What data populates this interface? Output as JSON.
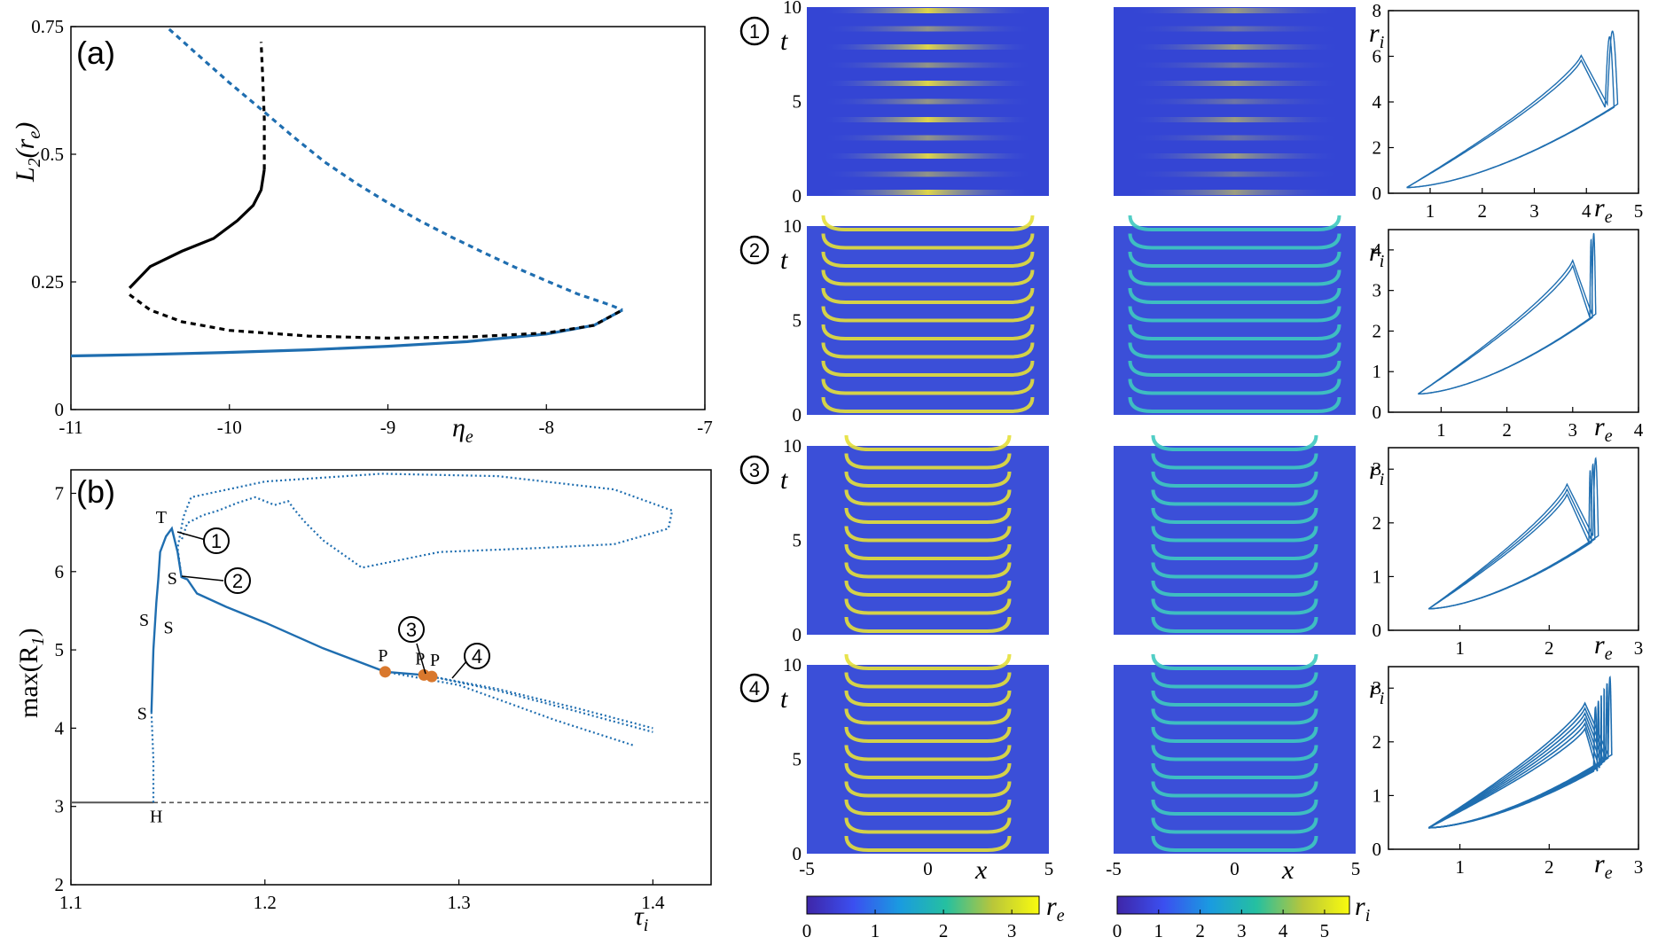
{
  "colors": {
    "blue": "#1f6eb0",
    "black": "#000000",
    "orange": "#d9782d",
    "gray": "#555555"
  },
  "labels": {
    "panel_a": "(a)",
    "panel_b": "(b)",
    "eta_e": "η",
    "eta_sub": "e",
    "tau_i": "τ",
    "tau_sub": "i",
    "L2": "L",
    "L2_sub": "2",
    "L2_arg": "(r",
    "L2_arg_sub": "e",
    "L2_close": ")",
    "maxR": "max(R",
    "maxR_sub": "1",
    "maxR_close": ")",
    "t": "t",
    "x": "x",
    "re": "r",
    "re_sub": "e",
    "ri": "r",
    "ri_sub": "i",
    "circle_nums": [
      "1",
      "2",
      "3",
      "4"
    ]
  },
  "point_labels": {
    "T": "T",
    "S": "S",
    "H": "H",
    "P": "P"
  },
  "chart_data": [
    {
      "id": "panel-a",
      "type": "line",
      "title": "(a)",
      "xlabel": "η_e",
      "ylabel": "L_2(r_e)",
      "xlim": [
        -11,
        -7
      ],
      "ylim": [
        0,
        0.75
      ],
      "xticks": [
        "-11",
        "-10",
        "-9",
        "-8",
        "-7"
      ],
      "yticks": [
        "0",
        "0.25",
        "0.5",
        "0.75"
      ],
      "series": [
        {
          "style": "blue-solid",
          "x": [
            -11.0,
            -10.5,
            -10.0,
            -9.5,
            -9.0,
            -8.5,
            -8.0,
            -7.7,
            -7.52
          ],
          "y": [
            0.105,
            0.108,
            0.112,
            0.117,
            0.124,
            0.133,
            0.148,
            0.165,
            0.195
          ]
        },
        {
          "style": "blue-dashed",
          "x": [
            -10.38,
            -10.2,
            -10.0,
            -9.8,
            -9.6,
            -9.4,
            -9.2,
            -9.0,
            -8.8,
            -8.6,
            -8.4,
            -8.2,
            -8.0,
            -7.8,
            -7.6,
            -7.52
          ],
          "y": [
            0.745,
            0.695,
            0.64,
            0.588,
            0.535,
            0.485,
            0.443,
            0.405,
            0.37,
            0.338,
            0.308,
            0.279,
            0.252,
            0.226,
            0.205,
            0.195
          ]
        },
        {
          "style": "black-dashed-lower",
          "x": [
            -10.63,
            -10.5,
            -10.3,
            -10.0,
            -9.5,
            -9.0,
            -8.5,
            -8.0,
            -7.7,
            -7.52
          ],
          "y": [
            0.225,
            0.195,
            0.172,
            0.155,
            0.144,
            0.14,
            0.142,
            0.15,
            0.165,
            0.195
          ]
        },
        {
          "style": "black-solid",
          "x": [
            -10.63,
            -10.5,
            -10.3,
            -10.1,
            -9.95,
            -9.85,
            -9.8,
            -9.78
          ],
          "y": [
            0.238,
            0.28,
            0.31,
            0.335,
            0.37,
            0.4,
            0.43,
            0.47
          ]
        },
        {
          "style": "black-dashed-upper",
          "x": [
            -9.78,
            -9.78,
            -9.79,
            -9.8
          ],
          "y": [
            0.47,
            0.57,
            0.65,
            0.72
          ]
        }
      ]
    },
    {
      "id": "panel-b",
      "type": "line",
      "title": "(b)",
      "xlabel": "τ_i",
      "ylabel": "max(R_1)",
      "xlim": [
        1.1,
        1.43
      ],
      "ylim": [
        2,
        7.3
      ],
      "xticks": [
        "1.1",
        "1.2",
        "1.3",
        "1.4"
      ],
      "yticks": [
        "2",
        "3",
        "4",
        "5",
        "6",
        "7"
      ],
      "series": [
        {
          "style": "gray-solid",
          "x": [
            1.1,
            1.1425
          ],
          "y": [
            3.05,
            3.05
          ]
        },
        {
          "style": "gray-dashed",
          "x": [
            1.1425,
            1.43
          ],
          "y": [
            3.05,
            3.05
          ]
        },
        {
          "style": "blue-dotted",
          "x": [
            1.1425,
            1.1425,
            1.1415
          ],
          "y": [
            3.05,
            3.6,
            4.2
          ]
        },
        {
          "style": "blue-solid",
          "x": [
            1.1415,
            1.1425,
            1.144,
            1.145,
            1.146,
            1.149,
            1.152,
            1.155,
            1.157,
            1.16,
            1.165,
            1.18,
            1.2,
            1.23,
            1.262,
            1.282
          ],
          "y": [
            4.2,
            5.0,
            5.6,
            5.9,
            6.25,
            6.45,
            6.55,
            6.25,
            5.93,
            5.9,
            5.72,
            5.55,
            5.35,
            5.02,
            4.72,
            4.68
          ]
        },
        {
          "style": "blue-dotted",
          "x": [
            1.262,
            1.3,
            1.35,
            1.39
          ],
          "y": [
            4.72,
            4.55,
            4.1,
            3.78
          ]
        },
        {
          "style": "blue-dotted",
          "x": [
            1.282,
            1.32,
            1.36,
            1.4
          ],
          "y": [
            4.68,
            4.48,
            4.22,
            3.95
          ]
        },
        {
          "style": "blue-dotted",
          "x": [
            1.286,
            1.32,
            1.36,
            1.4
          ],
          "y": [
            4.66,
            4.5,
            4.26,
            4.0
          ]
        },
        {
          "style": "blue-dotted",
          "x": [
            1.157,
            1.155,
            1.158,
            1.162,
            1.2,
            1.26,
            1.32,
            1.38,
            1.41,
            1.408,
            1.38,
            1.34,
            1.29,
            1.25,
            1.23,
            1.22,
            1.215,
            1.212,
            1.205,
            1.195,
            1.186,
            1.176,
            1.168,
            1.16,
            1.157
          ],
          "y": [
            5.93,
            6.3,
            6.7,
            6.95,
            7.15,
            7.25,
            7.22,
            7.05,
            6.78,
            6.55,
            6.35,
            6.3,
            6.25,
            6.05,
            6.4,
            6.65,
            6.8,
            6.9,
            6.85,
            6.95,
            6.88,
            6.78,
            6.72,
            6.62,
            6.4
          ]
        }
      ],
      "special_points": [
        {
          "label": "H",
          "x": 1.1425,
          "y": 3.05
        },
        {
          "label": "S",
          "x": 1.1415,
          "y": 4.2
        },
        {
          "label": "S",
          "x": 1.1425,
          "y": 5.4
        },
        {
          "label": "S",
          "x": 1.145,
          "y": 5.3
        },
        {
          "label": "S",
          "x": 1.157,
          "y": 5.93
        },
        {
          "label": "T",
          "x": 1.152,
          "y": 6.55
        },
        {
          "label": "P",
          "x": 1.262,
          "y": 4.72
        },
        {
          "label": "P",
          "x": 1.282,
          "y": 4.68
        },
        {
          "label": "P",
          "x": 1.286,
          "y": 4.66
        }
      ]
    },
    {
      "id": "heatmaps",
      "type": "heatmap",
      "xlabel": "x",
      "ylabel": "t",
      "xlim": [
        -5,
        5
      ],
      "ylim": [
        0,
        10
      ],
      "xticks": [
        "-5",
        "0",
        "5"
      ],
      "yticks": [
        "0",
        "5",
        "10"
      ],
      "rows": [
        "1",
        "2",
        "3",
        "4"
      ],
      "columns": [
        "r_e",
        "r_i"
      ]
    },
    {
      "id": "colorbars",
      "type": "heatmap",
      "re_ticks": [
        "0",
        "1",
        "2",
        "3"
      ],
      "re_max": 3.4,
      "ri_ticks": [
        "0",
        "1",
        "2",
        "3",
        "4",
        "5"
      ],
      "ri_max": 5.6
    },
    {
      "id": "phase-1",
      "type": "line",
      "xlabel": "r_e",
      "ylabel": "r_i",
      "xlim": [
        0.2,
        5
      ],
      "ylim": [
        0,
        8
      ],
      "xticks": [
        "1",
        "2",
        "3",
        "4",
        "5"
      ],
      "yticks": [
        "0",
        "2",
        "4",
        "6",
        "8"
      ]
    },
    {
      "id": "phase-2",
      "type": "line",
      "xlabel": "r_e",
      "ylabel": "r_i",
      "xlim": [
        0.2,
        4
      ],
      "ylim": [
        0,
        4.5
      ],
      "xticks": [
        "1",
        "2",
        "3",
        "4"
      ],
      "yticks": [
        "0",
        "1",
        "2",
        "3",
        "4"
      ]
    },
    {
      "id": "phase-3",
      "type": "line",
      "xlabel": "r_e",
      "ylabel": "r_i",
      "xlim": [
        0.2,
        3
      ],
      "ylim": [
        0,
        3.4
      ],
      "xticks": [
        "1",
        "2",
        "3"
      ],
      "yticks": [
        "0",
        "1",
        "2",
        "3"
      ]
    },
    {
      "id": "phase-4",
      "type": "line",
      "xlabel": "r_e",
      "ylabel": "r_i",
      "xlim": [
        0.2,
        3
      ],
      "ylim": [
        0,
        3.4
      ],
      "xticks": [
        "1",
        "2",
        "3"
      ],
      "yticks": [
        "0",
        "1",
        "2",
        "3"
      ]
    }
  ]
}
